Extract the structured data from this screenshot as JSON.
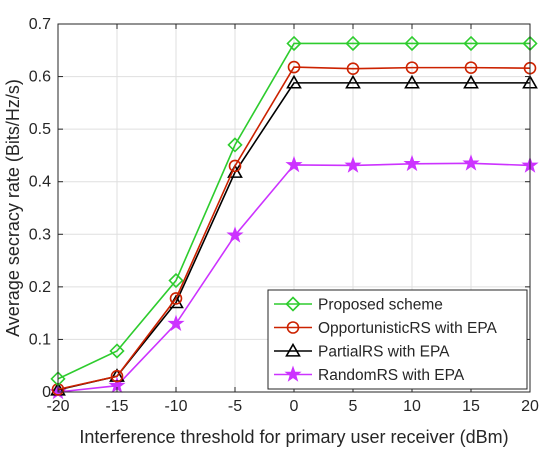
{
  "chart_data": {
    "type": "line",
    "title": "",
    "xlabel": "Interference threshold for primary user receiver (dBm)",
    "ylabel": "Average secracy rate (Bits/Hz/s)",
    "x": [
      -20,
      -15,
      -10,
      -5,
      0,
      5,
      10,
      15,
      20
    ],
    "xlim": [
      -20,
      20
    ],
    "ylim": [
      0,
      0.7
    ],
    "xticks": [
      "-20",
      "-15",
      "-10",
      "-5",
      "0",
      "5",
      "10",
      "15",
      "20"
    ],
    "yticks": [
      "0",
      "0.1",
      "0.2",
      "0.3",
      "0.4",
      "0.5",
      "0.6",
      "0.7"
    ],
    "grid": true,
    "legend_position": "bottom-right",
    "series": [
      {
        "name": "Proposed scheme",
        "color": "#2ecc2e",
        "marker": "diamond",
        "values": [
          0.025,
          0.078,
          0.212,
          0.47,
          0.663,
          0.663,
          0.663,
          0.663,
          0.663
        ]
      },
      {
        "name": "OpportunisticRS with EPA",
        "color": "#cc2200",
        "marker": "circle",
        "values": [
          0.005,
          0.03,
          0.178,
          0.43,
          0.618,
          0.615,
          0.617,
          0.617,
          0.616
        ]
      },
      {
        "name": "PartialRS with EPA",
        "color": "#000000",
        "marker": "triangle",
        "values": [
          0.004,
          0.03,
          0.17,
          0.418,
          0.588,
          0.588,
          0.588,
          0.588,
          0.588
        ]
      },
      {
        "name": "RandomRS with EPA",
        "color": "#cc33ff",
        "marker": "star",
        "values": [
          0.0,
          0.012,
          0.13,
          0.298,
          0.432,
          0.431,
          0.434,
          0.435,
          0.431
        ]
      }
    ]
  }
}
